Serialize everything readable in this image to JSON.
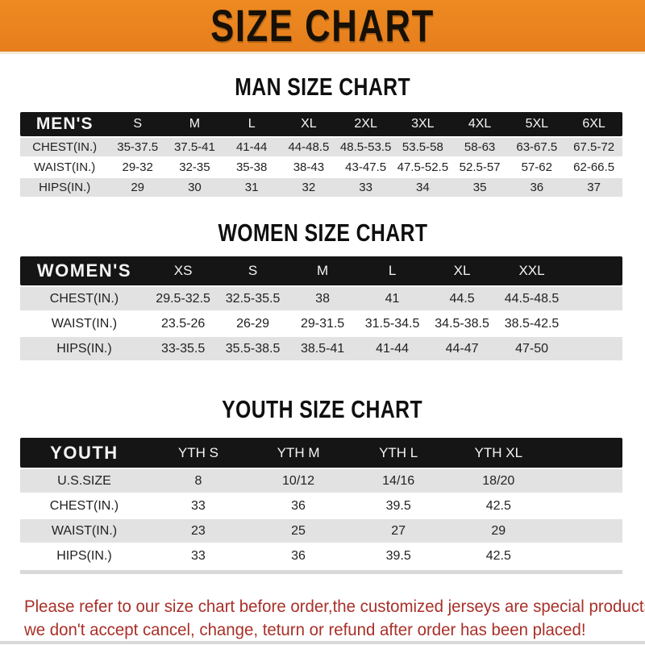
{
  "banner": {
    "title": "SIZE CHART"
  },
  "colors": {
    "banner_orange": "#e67e1c",
    "banner_orange_light": "#ee8a21",
    "bar_black": "#151515",
    "row_gray": "#e2e2e2",
    "note_red": "#a93029",
    "divider_gray": "#d9d9d9"
  },
  "men": {
    "title": "MAN SIZE CHART",
    "table": {
      "corner": "MEN'S",
      "columns": [
        "S",
        "M",
        "L",
        "XL",
        "2XL",
        "3XL",
        "4XL",
        "5XL",
        "6XL"
      ],
      "rows": [
        {
          "label": "CHEST(IN.)",
          "values": [
            "35-37.5",
            "37.5-41",
            "41-44",
            "44-48.5",
            "48.5-53.5",
            "53.5-58",
            "58-63",
            "63-67.5",
            "67.5-72"
          ]
        },
        {
          "label": "WAIST(IN.)",
          "values": [
            "29-32",
            "32-35",
            "35-38",
            "38-43",
            "43-47.5",
            "47.5-52.5",
            "52.5-57",
            "57-62",
            "62-66.5"
          ]
        },
        {
          "label": "HIPS(IN.)",
          "values": [
            "29",
            "30",
            "31",
            "32",
            "33",
            "34",
            "35",
            "36",
            "37"
          ]
        }
      ]
    }
  },
  "women": {
    "title": "WOMEN SIZE CHART",
    "table": {
      "corner": "WOMEN'S",
      "columns": [
        "XS",
        "S",
        "M",
        "L",
        "XL",
        "XXL"
      ],
      "rows": [
        {
          "label": "CHEST(IN.)",
          "values": [
            "29.5-32.5",
            "32.5-35.5",
            "38",
            "41",
            "44.5",
            "44.5-48.5"
          ]
        },
        {
          "label": "WAIST(IN.)",
          "values": [
            "23.5-26",
            "26-29",
            "29-31.5",
            "31.5-34.5",
            "34.5-38.5",
            "38.5-42.5"
          ]
        },
        {
          "label": "HIPS(IN.)",
          "values": [
            "33-35.5",
            "35.5-38.5",
            "38.5-41",
            "41-44",
            "44-47",
            "47-50"
          ]
        }
      ]
    }
  },
  "youth": {
    "title": "YOUTH SIZE CHART",
    "table": {
      "corner": "YOUTH",
      "columns": [
        "YTH S",
        "YTH M",
        "YTH L",
        "YTH XL"
      ],
      "rows": [
        {
          "label": "U.S.SIZE",
          "values": [
            "8",
            "10/12",
            "14/16",
            "18/20"
          ]
        },
        {
          "label": "CHEST(IN.)",
          "values": [
            "33",
            "36",
            "39.5",
            "42.5"
          ]
        },
        {
          "label": "WAIST(IN.)",
          "values": [
            "23",
            "25",
            "27",
            "29"
          ]
        },
        {
          "label": "HIPS(IN.)",
          "values": [
            "33",
            "36",
            "39.5",
            "42.5"
          ]
        }
      ]
    }
  },
  "note": {
    "line1": "Please refer to our size chart before order,the customized jerseys are special products,",
    "line2": "we don't accept cancel, change, teturn or refund after order has been placed!"
  }
}
